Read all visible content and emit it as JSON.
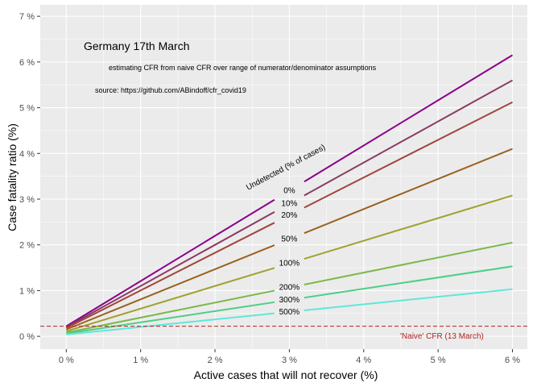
{
  "chart_data": {
    "type": "line",
    "xlabel": "Active cases that will not recover (%)",
    "ylabel": "Case fatality ratio (%)",
    "xlim": [
      -0.35,
      6.2
    ],
    "ylim": [
      -0.28,
      7.25
    ],
    "x_ticks": [
      0,
      1,
      2,
      3,
      4,
      5,
      6
    ],
    "x_tick_labels": [
      "0 %",
      "1 %",
      "2 %",
      "3 %",
      "4 %",
      "5 %",
      "6 %"
    ],
    "y_ticks": [
      0,
      1,
      2,
      3,
      4,
      5,
      6,
      7
    ],
    "y_tick_labels": [
      "0 %",
      "1 %",
      "2 %",
      "3 %",
      "4 %",
      "5 %",
      "6 %",
      "7 %"
    ],
    "grid": true,
    "annotations": {
      "title": "Germany 17th March",
      "subtitle": "estimating CFR from naive CFR over range of numerator/denominator assumptions",
      "source": "source: https://github.com/ABindoff/cfr_covid19",
      "undetected_label": "Undetected (% of cases)",
      "reference_label": "'Naive' CFR (13 March)"
    },
    "reference_line": {
      "y": 0.22,
      "color": "#b22222"
    },
    "gap": [
      2.8,
      3.2
    ],
    "series": [
      {
        "name": "0%",
        "label": "0%",
        "color": "#8b008b",
        "x": [
          0,
          6
        ],
        "y": [
          0.22,
          6.15
        ]
      },
      {
        "name": "10%",
        "label": "10%",
        "color": "#8b3a62",
        "x": [
          0,
          6
        ],
        "y": [
          0.2,
          5.6
        ]
      },
      {
        "name": "20%",
        "label": "20%",
        "color": "#a0453c",
        "x": [
          0,
          6
        ],
        "y": [
          0.18,
          5.12
        ]
      },
      {
        "name": "50%",
        "label": "50%",
        "color": "#99601f",
        "x": [
          0,
          6
        ],
        "y": [
          0.15,
          4.1
        ]
      },
      {
        "name": "100%",
        "label": "100%",
        "color": "#a0a030",
        "x": [
          0,
          6
        ],
        "y": [
          0.11,
          3.08
        ]
      },
      {
        "name": "200%",
        "label": "200%",
        "color": "#7ab84a",
        "x": [
          0,
          6
        ],
        "y": [
          0.08,
          2.05
        ]
      },
      {
        "name": "300%",
        "label": "300%",
        "color": "#4ccf86",
        "x": [
          0,
          6
        ],
        "y": [
          0.06,
          1.53
        ]
      },
      {
        "name": "500%",
        "label": "500%",
        "color": "#5ee8d8",
        "x": [
          0,
          6
        ],
        "y": [
          0.04,
          1.03
        ]
      }
    ]
  }
}
